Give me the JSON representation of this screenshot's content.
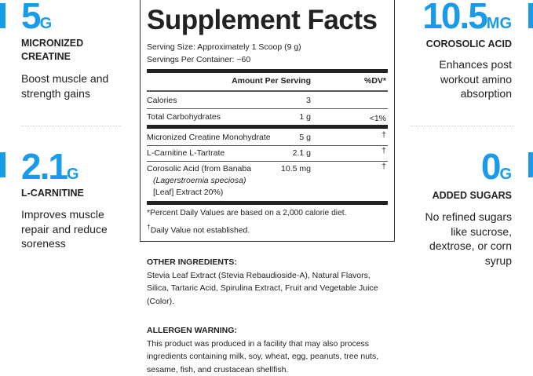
{
  "accent_color": "#1a9be8",
  "left": [
    {
      "value": "5",
      "unit": "G",
      "label": [
        "MICRONIZED",
        "CREATINE"
      ],
      "desc": [
        "Boost muscle and",
        "strength gains"
      ]
    },
    {
      "value": "2.1",
      "unit": "G",
      "label": [
        "L-CARNITINE"
      ],
      "desc": [
        "Improves muscle",
        "repair and reduce",
        "soreness"
      ]
    }
  ],
  "right": [
    {
      "value": "10.5",
      "unit": "MG",
      "label": [
        "COROSOLIC ACID"
      ],
      "desc": [
        "Enhances post",
        "workout amino",
        "absorption"
      ]
    },
    {
      "value": "0",
      "unit": "G",
      "label": [
        "ADDED SUGARS"
      ],
      "desc": [
        "No refined sugars",
        "like sucrose,",
        "dextrose, or corn",
        "syrup"
      ]
    }
  ],
  "facts": {
    "title": "Supplement Facts",
    "serving_size": "Serving Size: Approximately 1 Scoop (9 g)",
    "servings_per_container": "Servings Per Container: ~60",
    "header_amount": "Amount Per Serving",
    "header_dv": "%DV*",
    "rows": [
      {
        "name": "Calories",
        "amount": "3",
        "dv": ""
      },
      {
        "name": "Total Carbohydrates",
        "amount": "1 g",
        "dv": "<1%"
      },
      {
        "name": "Micronized Creatine Monohydrate",
        "amount": "5 g",
        "dv": "†"
      },
      {
        "name": "L-Carnitine L-Tartrate",
        "amount": "2.1 g",
        "dv": "†"
      },
      {
        "name": "Corosolic Acid (from Banaba",
        "name2": "(Lagerstroemia speciosa)",
        "name3": "[Leaf] Extract 20%)",
        "amount": "10.5 mg",
        "dv": "†"
      }
    ],
    "footnote1": "*Percent Daily Values are based on a 2,000 calorie diet.",
    "footnote2_mark": "†",
    "footnote2": "Daily Value not established."
  },
  "other_ingredients": {
    "heading": "OTHER INGREDIENTS:",
    "text": "Stevia Leaf Extract (Stevia Rebaudioside-A), Natural Flavors, Silica, Tartaric Acid, Spirulina Extract, Fruit and Vegetable Juice (Color)."
  },
  "allergen": {
    "heading": "ALLERGEN WARNING:",
    "text": "This product was produced in a facility that may also process ingredients containing milk, soy, wheat, egg, peanuts, tree nuts, sesame, fish, and crustacean shellfish."
  }
}
